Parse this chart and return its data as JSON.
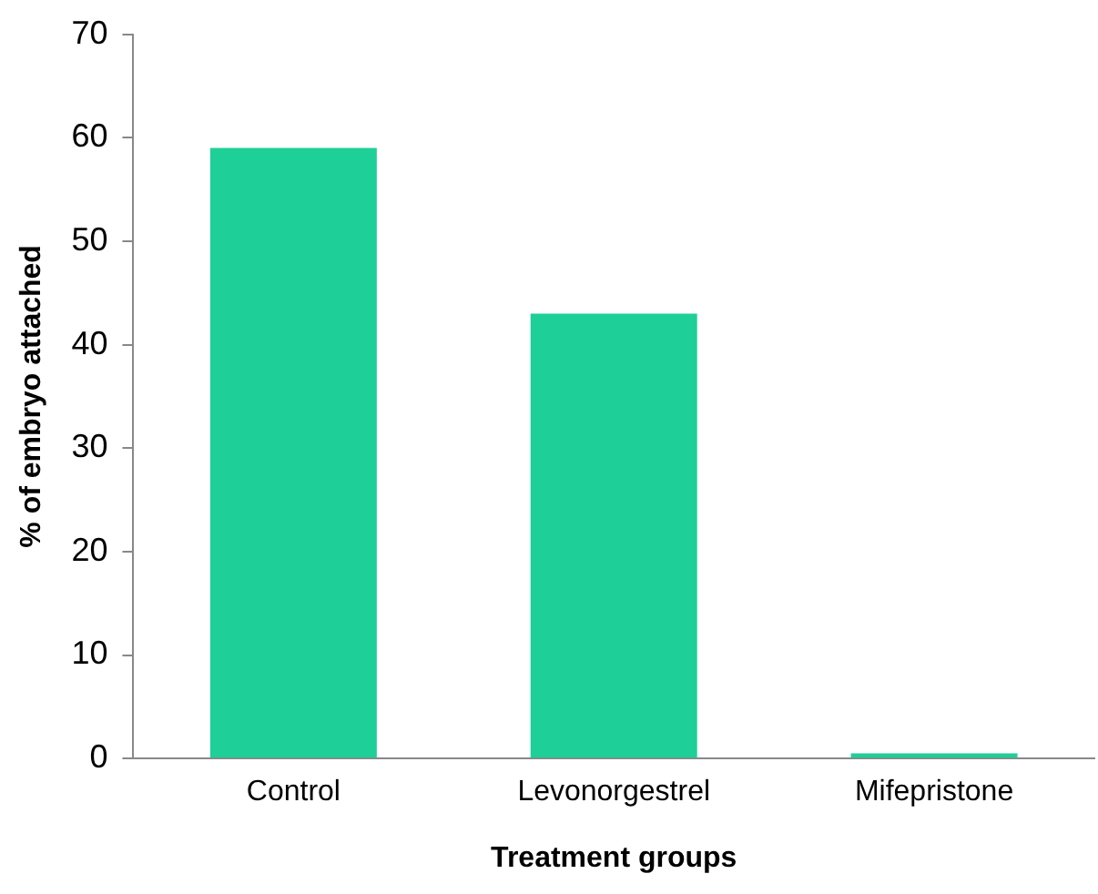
{
  "chart_data": {
    "type": "bar",
    "xlabel": "Treatment groups",
    "ylabel": "% of embryo attached",
    "categories": [
      "Control",
      "Levonorgestrel",
      "Mifepristone"
    ],
    "values": [
      59,
      43,
      0.5
    ],
    "color": "#1fcf98",
    "ylim": [
      0,
      70
    ],
    "yticks": [
      0,
      10,
      20,
      30,
      40,
      50,
      60,
      70
    ],
    "grid": false,
    "legend": false
  }
}
